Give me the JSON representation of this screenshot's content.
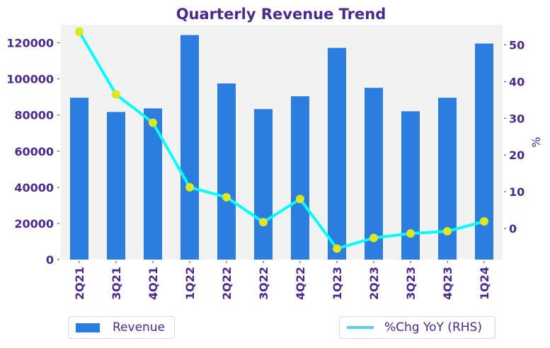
{
  "chart_data": {
    "type": "bar",
    "title": "Quarterly Revenue Trend",
    "categories": [
      "2Q21",
      "3Q21",
      "4Q21",
      "1Q22",
      "2Q22",
      "3Q22",
      "4Q22",
      "1Q23",
      "2Q23",
      "3Q23",
      "4Q23",
      "1Q24"
    ],
    "series": [
      {
        "name": "Revenue",
        "type": "bar",
        "axis": "left",
        "color": "#2b7de0",
        "values": [
          89600,
          81700,
          83700,
          124300,
          97500,
          83300,
          90400,
          117200,
          95100,
          82100,
          89600,
          119600
        ]
      },
      {
        "name": "%Chg YoY (RHS)",
        "type": "line",
        "axis": "right",
        "color": "#00ffff",
        "marker_color": "#dde620",
        "legend_color": "#5bcfdc",
        "values": [
          53.6,
          36.5,
          28.8,
          11.2,
          8.5,
          1.7,
          8.0,
          -5.5,
          -2.6,
          -1.4,
          -0.8,
          1.9
        ]
      }
    ],
    "xlabel": "",
    "ylabel": "",
    "ylabel_right": "%",
    "ylim": [
      0,
      130000
    ],
    "ylim_right": [
      -8.5,
      55.5
    ],
    "yticks": [
      0,
      20000,
      40000,
      60000,
      80000,
      100000,
      120000
    ],
    "yticks_right": [
      0,
      10,
      20,
      30,
      40,
      50
    ],
    "grid": false,
    "plot_background": "#f2f2f2",
    "text_color": "#4a2a8a",
    "legend": [
      {
        "label": "Revenue",
        "placement": "bottom-left"
      },
      {
        "label": "%Chg YoY (RHS)",
        "placement": "bottom-right"
      }
    ]
  }
}
